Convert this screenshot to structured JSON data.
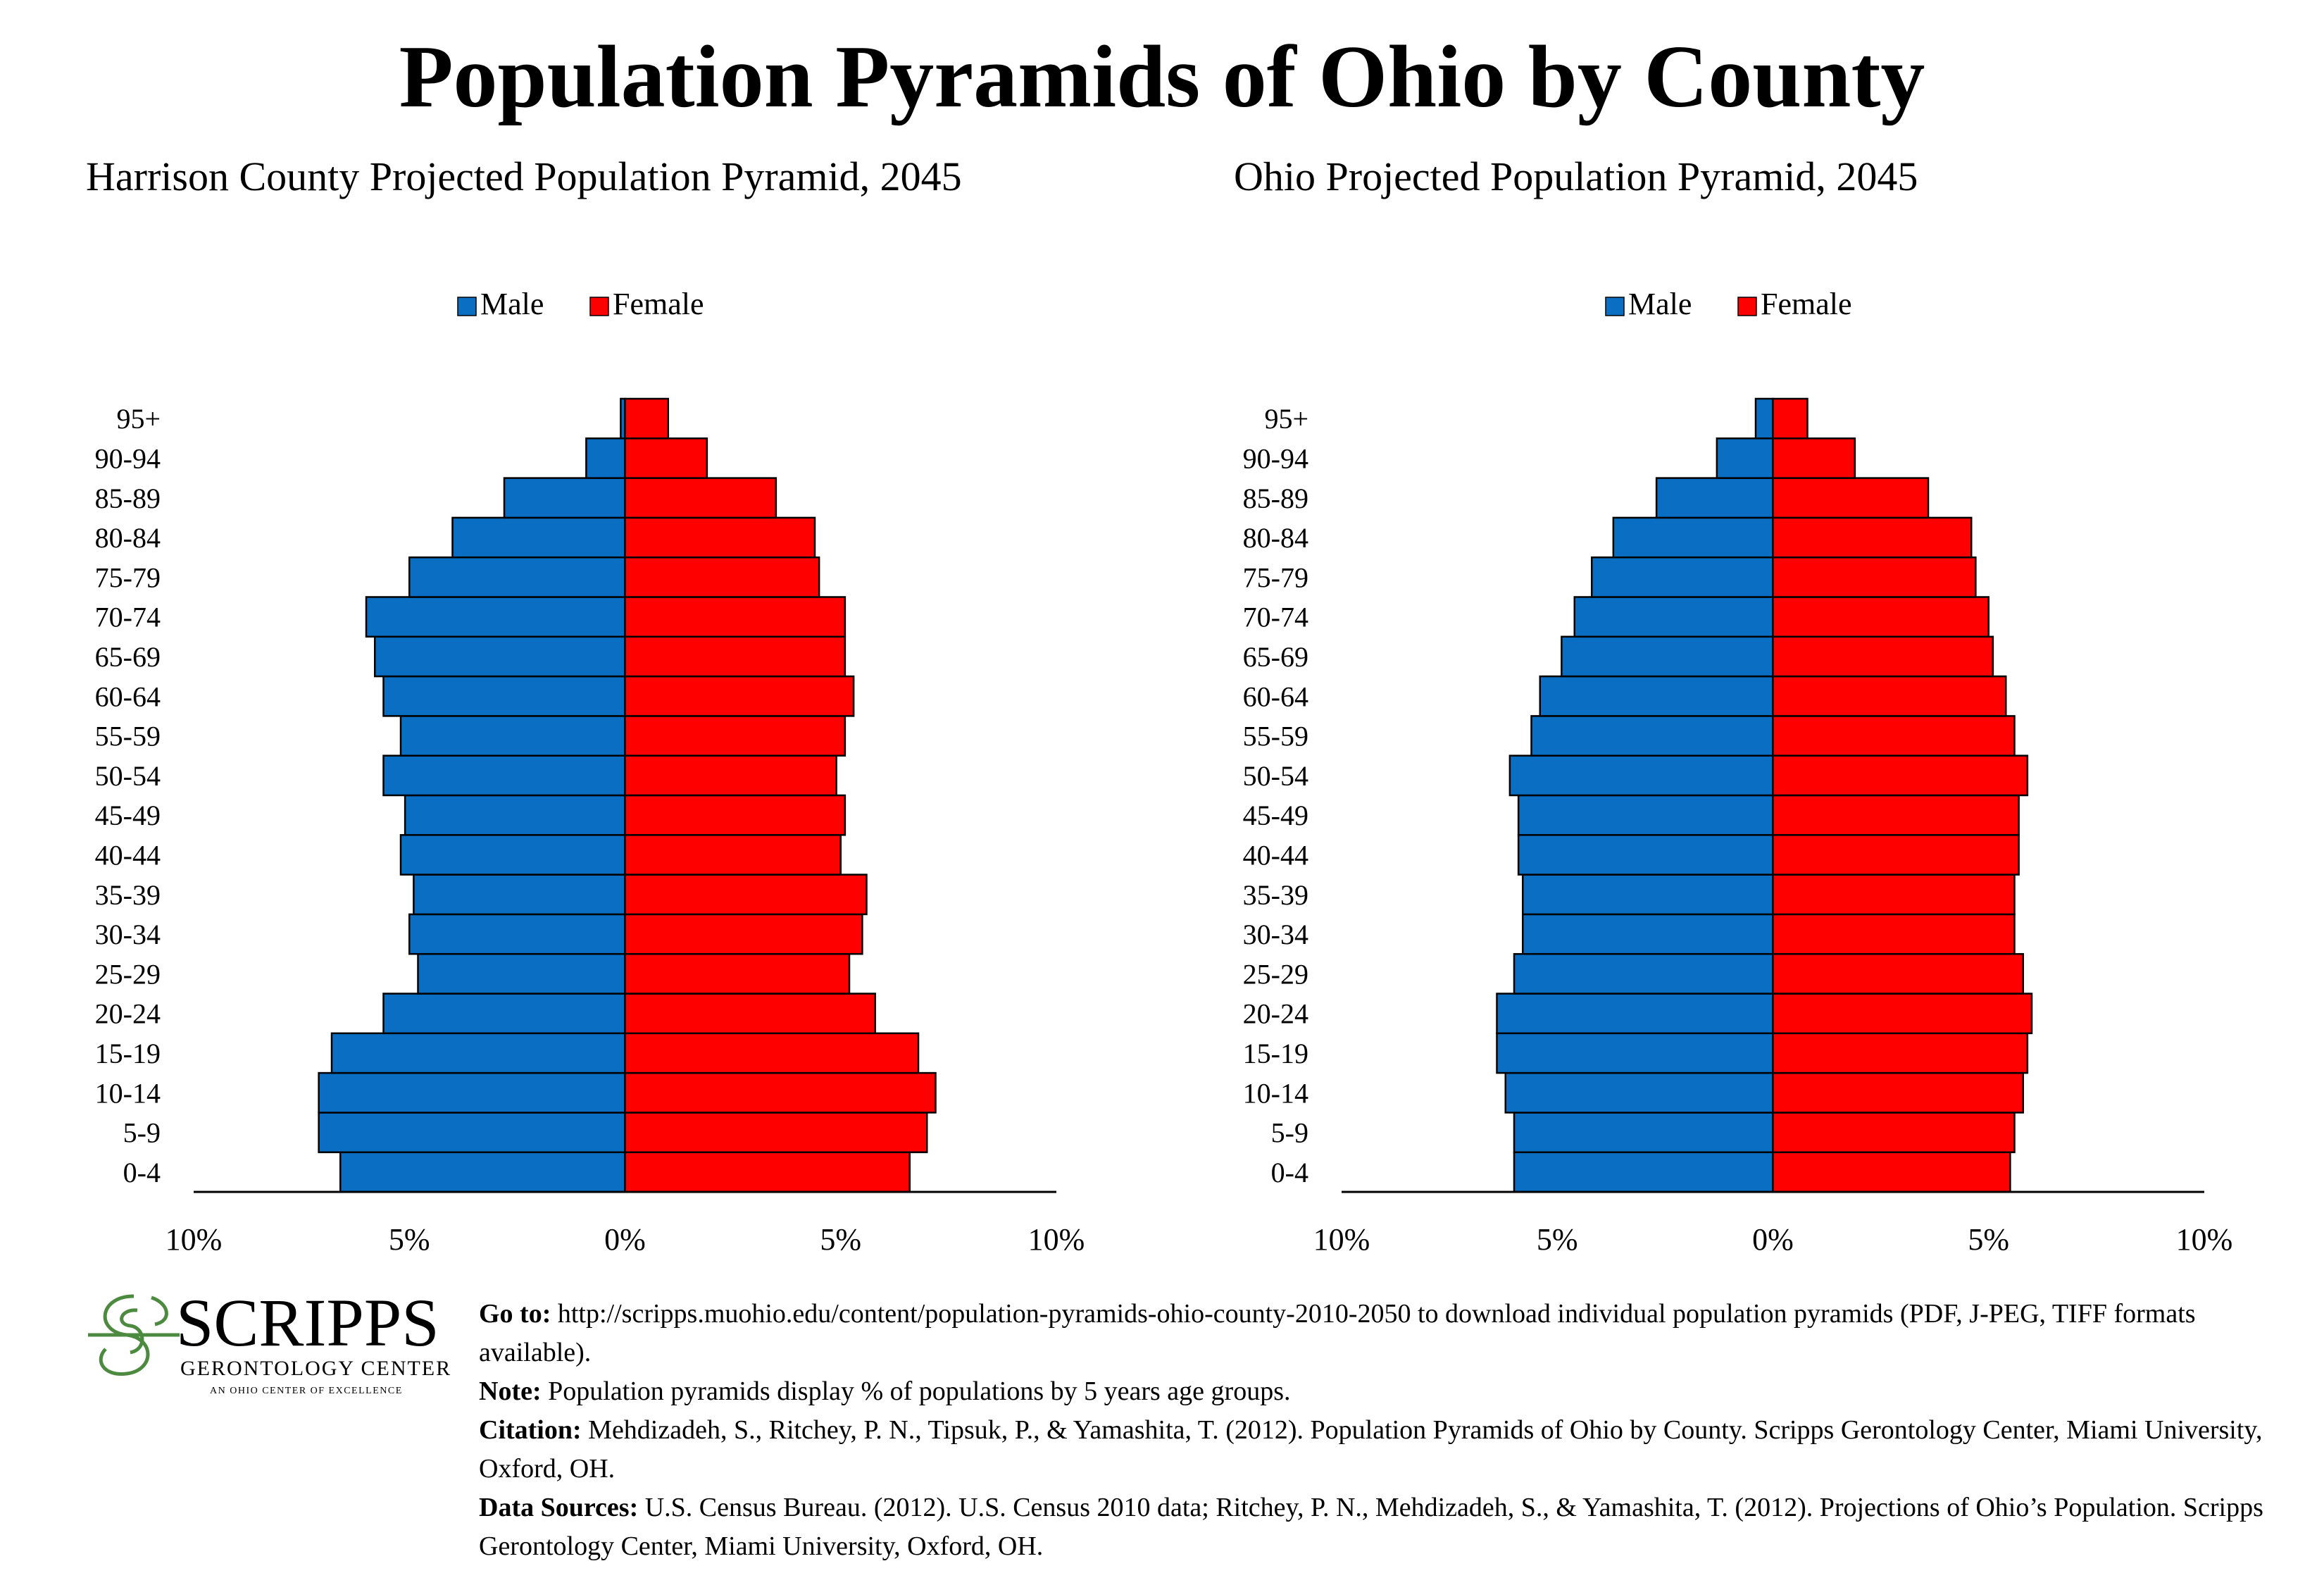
{
  "title": "Population Pyramids of Ohio by County",
  "colors": {
    "male": "#0A6FC2",
    "female": "#FF0000",
    "axis": "#000000",
    "logo_red": "#B5302F",
    "logo_green": "#4C8A3F"
  },
  "chart_data": [
    {
      "type": "bar",
      "orientation": "population-pyramid",
      "title": "Harrison County Projected Population Pyramid, 2045",
      "legend": [
        "Male",
        "Female"
      ],
      "legend_position": "top-center",
      "categories": [
        "0-4",
        "5-9",
        "10-14",
        "15-19",
        "20-24",
        "25-29",
        "30-34",
        "35-39",
        "40-44",
        "45-49",
        "50-54",
        "55-59",
        "60-64",
        "65-69",
        "70-74",
        "75-79",
        "80-84",
        "85-89",
        "90-94",
        "95+"
      ],
      "series": [
        {
          "name": "Male",
          "values": [
            6.6,
            7.1,
            7.1,
            6.8,
            5.6,
            4.8,
            5.0,
            4.9,
            5.2,
            5.1,
            5.6,
            5.2,
            5.6,
            5.8,
            6.0,
            5.0,
            4.0,
            2.8,
            0.9,
            0.1
          ]
        },
        {
          "name": "Female",
          "values": [
            6.6,
            7.0,
            7.2,
            6.8,
            5.8,
            5.2,
            5.5,
            5.6,
            5.0,
            5.1,
            4.9,
            5.1,
            5.3,
            5.1,
            5.1,
            4.5,
            4.4,
            3.5,
            1.9,
            1.0
          ]
        }
      ],
      "xlim": [
        -10,
        10
      ],
      "ticks": [
        "10%",
        "5%",
        "0%",
        "5%",
        "10%"
      ],
      "grid": false
    },
    {
      "type": "bar",
      "orientation": "population-pyramid",
      "title": "Ohio Projected Population Pyramid, 2045",
      "legend": [
        "Male",
        "Female"
      ],
      "legend_position": "top-center",
      "categories": [
        "0-4",
        "5-9",
        "10-14",
        "15-19",
        "20-24",
        "25-29",
        "30-34",
        "35-39",
        "40-44",
        "45-49",
        "50-54",
        "55-59",
        "60-64",
        "65-69",
        "70-74",
        "75-79",
        "80-84",
        "85-89",
        "90-94",
        "95+"
      ],
      "series": [
        {
          "name": "Male",
          "values": [
            6.0,
            6.0,
            6.2,
            6.4,
            6.4,
            6.0,
            5.8,
            5.8,
            5.9,
            5.9,
            6.1,
            5.6,
            5.4,
            4.9,
            4.6,
            4.2,
            3.7,
            2.7,
            1.3,
            0.4
          ]
        },
        {
          "name": "Female",
          "values": [
            5.5,
            5.6,
            5.8,
            5.9,
            6.0,
            5.8,
            5.6,
            5.6,
            5.7,
            5.7,
            5.9,
            5.6,
            5.4,
            5.1,
            5.0,
            4.7,
            4.6,
            3.6,
            1.9,
            0.8
          ]
        }
      ],
      "xlim": [
        -10,
        10
      ],
      "ticks": [
        "10%",
        "5%",
        "0%",
        "5%",
        "10%"
      ],
      "grid": false
    }
  ],
  "logo": {
    "name": "SCRIPPS",
    "subtitle": "GERONTOLOGY CENTER",
    "tagline": "AN OHIO CENTER OF EXCELLENCE"
  },
  "footer": {
    "goto_label": "Go to:",
    "goto_text": "http://scripps.muohio.edu/content/population-pyramids-ohio-county-2010-2050 to download individual population pyramids (PDF, J-PEG, TIFF formats available).",
    "note_label": "Note:",
    "note_text": "Population pyramids display % of populations by 5 years age groups.",
    "citation_label": "Citation:",
    "citation_text": "Mehdizadeh, S., Ritchey, P. N., Tipsuk, P., & Yamashita, T. (2012). Population Pyramids of Ohio by County. Scripps Gerontology Center, Miami University, Oxford, OH.",
    "sources_label": "Data Sources:",
    "sources_text": "U.S. Census Bureau. (2012). U.S. Census 2010 data; Ritchey, P. N., Mehdizadeh, S., & Yamashita, T. (2012). Projections of Ohio’s Population. Scripps Gerontology Center, Miami University, Oxford, OH."
  }
}
